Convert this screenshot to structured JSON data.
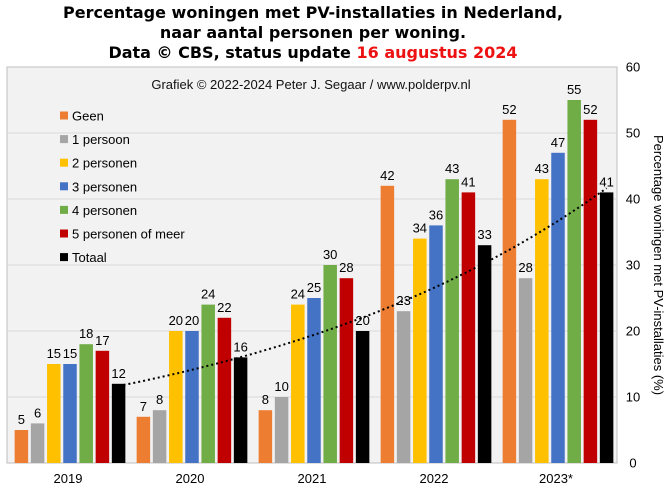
{
  "chart_data": {
    "type": "bar",
    "title_lines": [
      "Percentage woningen met PV-installaties in Nederland,",
      "naar aantal personen per woning."
    ],
    "title_line3_prefix": "Data © CBS, status update ",
    "title_line3_date": "16 augustus 2024",
    "credit": "Grafiek © 2022-2024 Peter J. Segaar / www.polderpv.nl",
    "ylabel": "Percentage woningen met PV-installaties (%)",
    "ylim": [
      0,
      60
    ],
    "yticks": [
      0,
      10,
      20,
      30,
      40,
      50,
      60
    ],
    "categories": [
      "2019",
      "2020",
      "2021",
      "2022",
      "2023*"
    ],
    "series": [
      {
        "name": "Geen",
        "color": "#ed7d31",
        "values": [
          5,
          7,
          8,
          42,
          52
        ]
      },
      {
        "name": "1 persoon",
        "color": "#a5a5a5",
        "values": [
          6,
          8,
          10,
          23,
          28
        ]
      },
      {
        "name": "2 personen",
        "color": "#ffc000",
        "values": [
          15,
          20,
          24,
          34,
          43
        ]
      },
      {
        "name": "3 personen",
        "color": "#4472c4",
        "values": [
          15,
          20,
          25,
          36,
          47
        ]
      },
      {
        "name": "4 personen",
        "color": "#70ad47",
        "values": [
          18,
          24,
          30,
          43,
          55
        ]
      },
      {
        "name": "5 personen of meer",
        "color": "#c00000",
        "values": [
          17,
          22,
          28,
          41,
          52
        ]
      },
      {
        "name": "Totaal",
        "color": "#000000",
        "values": [
          12,
          16,
          20,
          33,
          41
        ]
      }
    ],
    "trendline": {
      "style": "dotted",
      "color": "#000000",
      "fitted_to": "Totaal"
    },
    "grid": true,
    "legend_position": "top-left",
    "colors": {
      "title_highlight": "#ee1111",
      "plot_background": "#f2f2f2",
      "gridline": "#d9d9d9"
    }
  }
}
